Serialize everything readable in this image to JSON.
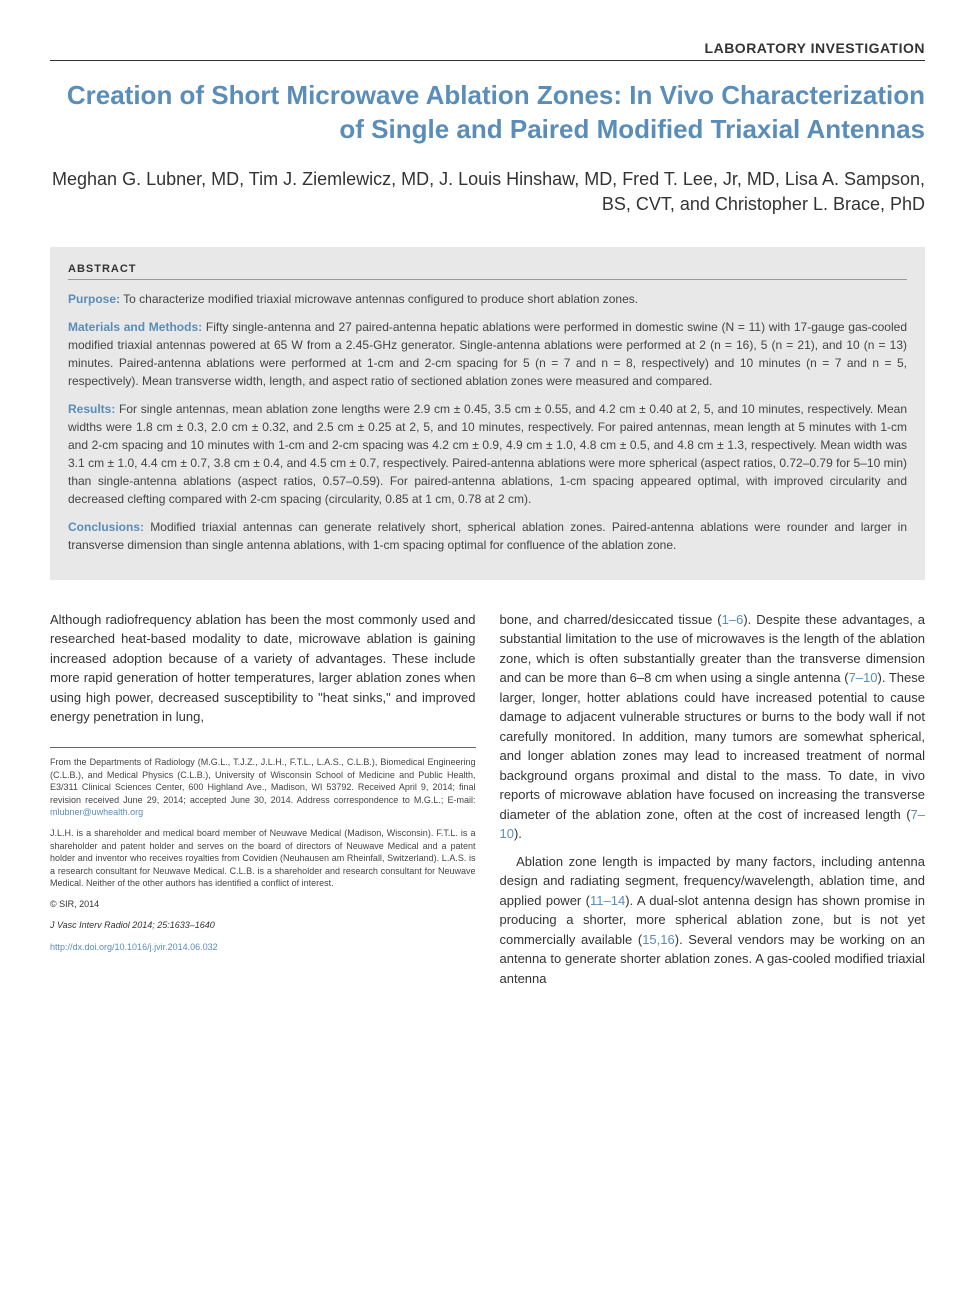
{
  "sectionLabel": "LABORATORY INVESTIGATION",
  "title": "Creation of Short Microwave Ablation Zones: In Vivo Characterization of Single and Paired Modified Triaxial Antennas",
  "authors": "Meghan G. Lubner, MD, Tim J. Ziemlewicz, MD, J. Louis Hinshaw, MD, Fred T. Lee, Jr, MD, Lisa A. Sampson, BS, CVT, and Christopher L. Brace, PhD",
  "abstract": {
    "heading": "ABSTRACT",
    "purpose": {
      "label": "Purpose:",
      "text": " To characterize modified triaxial microwave antennas configured to produce short ablation zones."
    },
    "methods": {
      "label": "Materials and Methods:",
      "text": " Fifty single-antenna and 27 paired-antenna hepatic ablations were performed in domestic swine (N = 11) with 17-gauge gas-cooled modified triaxial antennas powered at 65 W from a 2.45-GHz generator. Single-antenna ablations were performed at 2 (n = 16), 5 (n = 21), and 10 (n = 13) minutes. Paired-antenna ablations were performed at 1-cm and 2-cm spacing for 5 (n = 7 and n = 8, respectively) and 10 minutes (n = 7 and n = 5, respectively). Mean transverse width, length, and aspect ratio of sectioned ablation zones were measured and compared."
    },
    "results": {
      "label": "Results:",
      "text": " For single antennas, mean ablation zone lengths were 2.9 cm ± 0.45, 3.5 cm ± 0.55, and 4.2 cm ± 0.40 at 2, 5, and 10 minutes, respectively. Mean widths were 1.8 cm ± 0.3, 2.0 cm ± 0.32, and 2.5 cm ± 0.25 at 2, 5, and 10 minutes, respectively. For paired antennas, mean length at 5 minutes with 1-cm and 2-cm spacing and 10 minutes with 1-cm and 2-cm spacing was 4.2 cm ± 0.9, 4.9 cm ± 1.0, 4.8 cm ± 0.5, and 4.8 cm ± 1.3, respectively. Mean width was 3.1 cm ± 1.0, 4.4 cm ± 0.7, 3.8 cm ± 0.4, and 4.5 cm ± 0.7, respectively. Paired-antenna ablations were more spherical (aspect ratios, 0.72–0.79 for 5–10 min) than single-antenna ablations (aspect ratios, 0.57–0.59). For paired-antenna ablations, 1-cm spacing appeared optimal, with improved circularity and decreased clefting compared with 2-cm spacing (circularity, 0.85 at 1 cm, 0.78 at 2 cm)."
    },
    "conclusions": {
      "label": "Conclusions:",
      "text": " Modified triaxial antennas can generate relatively short, spherical ablation zones. Paired-antenna ablations were rounder and larger in transverse dimension than single antenna ablations, with 1-cm spacing optimal for confluence of the ablation zone."
    }
  },
  "body": {
    "leftCol": {
      "para1": "Although radiofrequency ablation has been the most commonly used and researched heat-based modality to date, microwave ablation is gaining increased adoption because of a variety of advantages. These include more rapid generation of hotter temperatures, larger ablation zones when using high power, decreased susceptibility to \"heat sinks,\" and improved energy penetration in lung,"
    },
    "rightCol": {
      "para1a": "bone, and charred/desiccated tissue (",
      "ref1": "1–6",
      "para1b": "). Despite these advantages, a substantial limitation to the use of microwaves is the length of the ablation zone, which is often substantially greater than the transverse dimension and can be more than 6–8 cm when using a single antenna (",
      "ref2": "7–10",
      "para1c": "). These larger, longer, hotter ablations could have increased potential to cause damage to adjacent vulnerable structures or burns to the body wall if not carefully monitored. In addition, many tumors are somewhat spherical, and longer ablation zones may lead to increased treatment of normal background organs proximal and distal to the mass. To date, in vivo reports of microwave ablation have focused on increasing the transverse diameter of the ablation zone, often at the cost of increased length (",
      "ref3": "7–10",
      "para1d": ").",
      "para2a": "Ablation zone length is impacted by many factors, including antenna design and radiating segment, frequency/wavelength, ablation time, and applied power (",
      "ref4": "11–14",
      "para2b": "). A dual-slot antenna design has shown promise in producing a shorter, more spherical ablation zone, but is not yet commercially available (",
      "ref5": "15,16",
      "para2c": "). Several vendors may be working on an antenna to generate shorter ablation zones. A gas-cooled modified triaxial antenna"
    }
  },
  "footnotes": {
    "affiliation1": "From the Departments of Radiology (M.G.L., T.J.Z., J.L.H., F.T.L., L.A.S., C.L.B.), Biomedical Engineering (C.L.B.), and Medical Physics (C.L.B.), University of Wisconsin School of Medicine and Public Health, E3/311 Clinical Sciences Center, 600 Highland Ave., Madison, WI 53792. Received April 9, 2014; final revision received June 29, 2014; accepted June 30, 2014. Address correspondence to M.G.L.; E-mail: ",
    "email": "mlubner@uwhealth.org",
    "disclosure": "J.L.H. is a shareholder and medical board member of Neuwave Medical (Madison, Wisconsin). F.T.L. is a shareholder and patent holder and serves on the board of directors of Neuwave Medical and a patent holder and inventor who receives royalties from Covidien (Neuhausen am Rheinfall, Switzerland). L.A.S. is a research consultant for Neuwave Medical. C.L.B. is a shareholder and research consultant for Neuwave Medical. Neither of the other authors has identified a conflict of interest.",
    "copyright": "© SIR, 2014",
    "journalRef": "J Vasc Interv Radiol 2014; 25:1633–1640",
    "doi": "http://dx.doi.org/10.1016/j.jvir.2014.06.032"
  },
  "colors": {
    "titleColor": "#5a8db8",
    "abstractBg": "#e8e8e8",
    "linkColor": "#5a8db8",
    "textColor": "#333333"
  }
}
